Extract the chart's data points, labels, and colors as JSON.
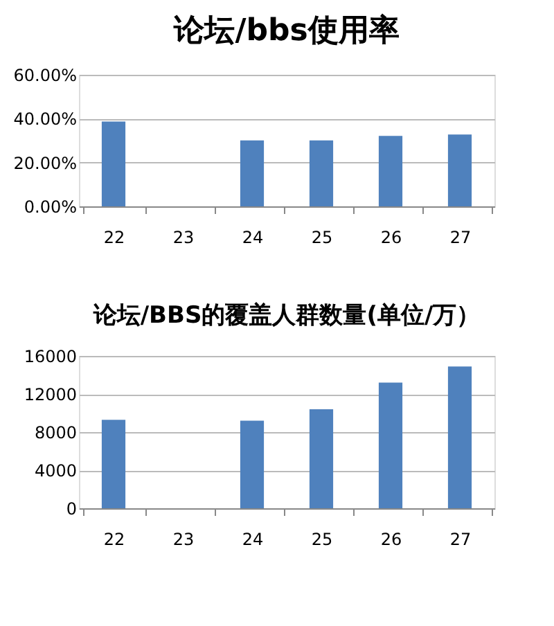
{
  "chart_data": [
    {
      "type": "bar",
      "title": "论坛/bbs使用率",
      "categories": [
        "22",
        "23",
        "24",
        "25",
        "26",
        "27"
      ],
      "values": [
        38.7,
        null,
        30.1,
        30.1,
        32.1,
        32.8
      ],
      "color": "#4f81bd",
      "ylim": [
        0,
        60
      ],
      "yticks": [
        {
          "value": 0,
          "label": "0.00%"
        },
        {
          "value": 20,
          "label": "20.00%"
        },
        {
          "value": 40,
          "label": "40.00%"
        },
        {
          "value": 60,
          "label": "60.00%"
        }
      ],
      "grid": "y"
    },
    {
      "type": "bar",
      "title": "论坛/BBS的覆盖人群数量(单位/万）",
      "categories": [
        "22",
        "23",
        "24",
        "25",
        "26",
        "27"
      ],
      "values": [
        9300,
        null,
        9200,
        10400,
        13200,
        14900
      ],
      "color": "#4f81bd",
      "ylim": [
        0,
        16000
      ],
      "yticks": [
        0,
        4000,
        8000,
        12000,
        16000
      ],
      "grid": "y"
    }
  ]
}
